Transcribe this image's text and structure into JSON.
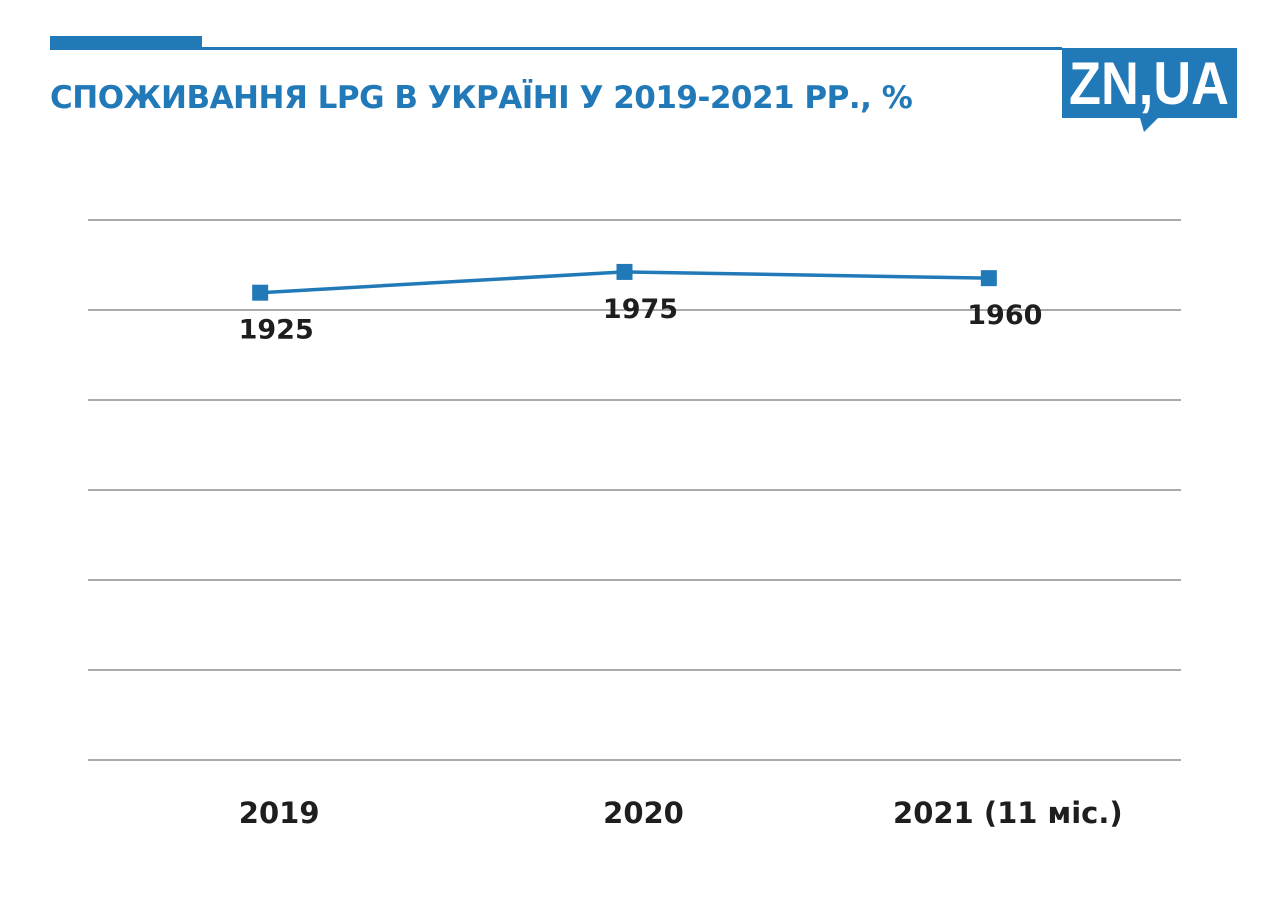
{
  "header": {
    "title": "СПОЖИВАННЯ LPG В УКРАЇНІ У 2019-2021 РР., %"
  },
  "logo": {
    "text": "ZN,UA"
  },
  "colors": {
    "accent": "#2179b8",
    "gridline": "#555555",
    "label": "#1e1e1e",
    "background": "#ffffff"
  },
  "chart_data": {
    "type": "line",
    "title": "СПОЖИВАННЯ LPG В УКРАЇНІ У 2019-2021 РР., %",
    "categories": [
      "2019",
      "2020",
      "2021 (11 міс.)"
    ],
    "series": [
      {
        "values": [
          1925,
          1975,
          1960
        ],
        "labels": [
          "1925",
          "1975",
          "1960"
        ],
        "marker": "square"
      }
    ],
    "ylim": [
      800,
      2100
    ],
    "grid": true,
    "legend": "none",
    "xlabel": "",
    "ylabel": ""
  }
}
